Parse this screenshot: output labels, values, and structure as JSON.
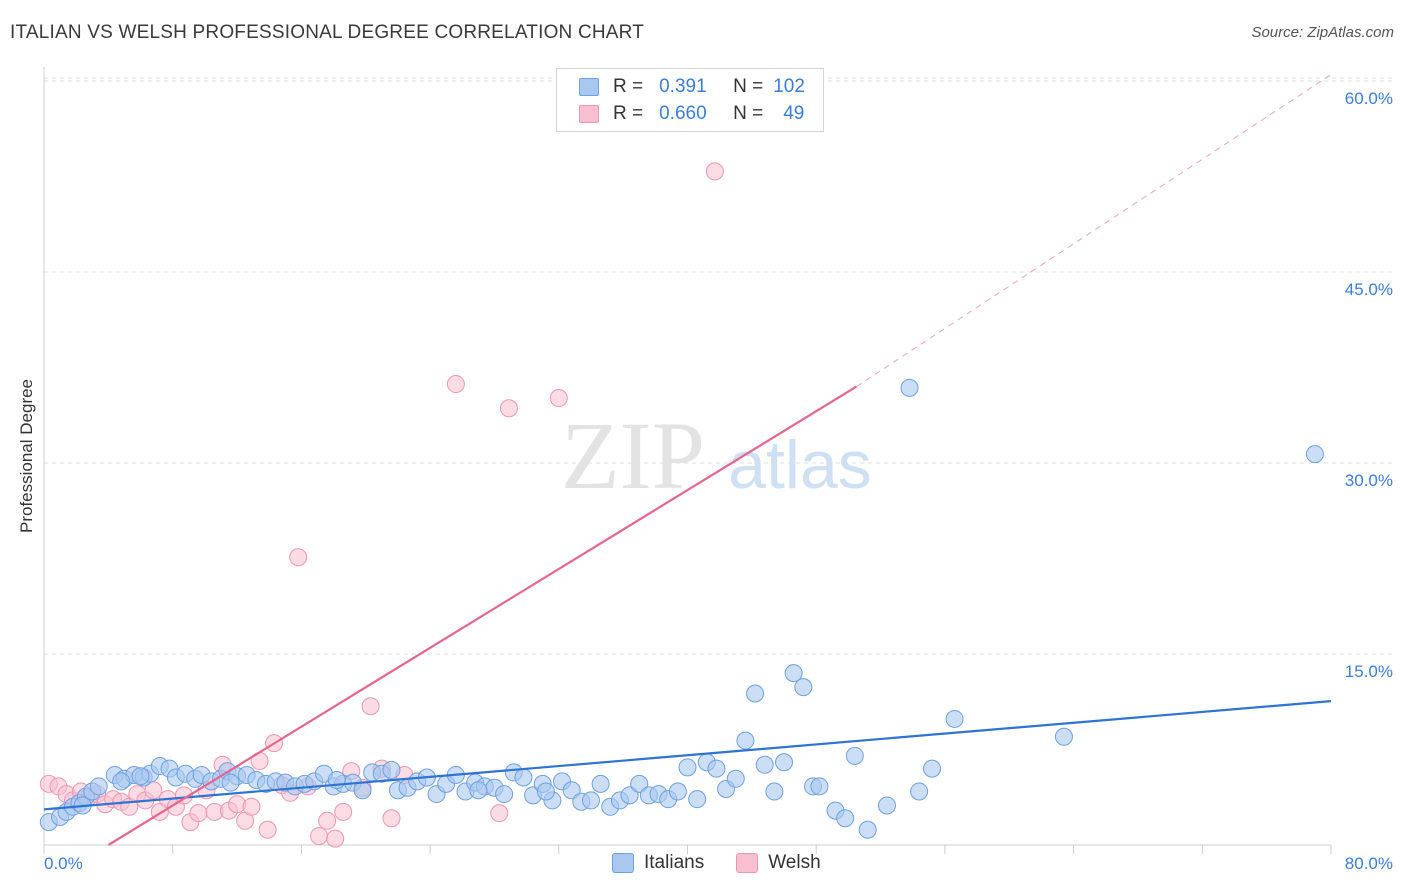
{
  "header": {
    "title": "ITALIAN VS WELSH PROFESSIONAL DEGREE CORRELATION CHART",
    "source": "Source: ZipAtlas.com"
  },
  "watermark": {
    "part1": "ZIP",
    "part2": "atlas"
  },
  "legend": {
    "italians": {
      "r_label": "R =",
      "r_value": "0.391",
      "n_label": "N =",
      "n_value": "102"
    },
    "welsh": {
      "r_label": "R =",
      "r_value": "0.660",
      "n_label": "N =",
      "n_value": "49"
    }
  },
  "colors": {
    "italians_fill": "#a8c8f0",
    "italians_stroke": "#6fa0e0",
    "italians_line": "#2f74d0",
    "welsh_fill": "#f8bfd0",
    "welsh_stroke": "#ee96b0",
    "welsh_line": "#e46690",
    "grid": "#dddddd",
    "tick_text": "#3b7dd8"
  },
  "chart_data": {
    "type": "scatter",
    "title": "ITALIAN VS WELSH PROFESSIONAL DEGREE CORRELATION CHART",
    "xlabel": "",
    "ylabel": "Professional Degree",
    "xlim": [
      0,
      80
    ],
    "ylim": [
      0,
      62
    ],
    "x_tick_labels": [
      "0.0%",
      "80.0%"
    ],
    "y_ticks": [
      15,
      30,
      45,
      60
    ],
    "y_tick_labels": [
      "15.0%",
      "30.0%",
      "45.0%",
      "60.0%"
    ],
    "grid": true,
    "legend_position": "top-center",
    "series": [
      {
        "name": "Italians",
        "r": 0.391,
        "n": 102,
        "trend": {
          "x": [
            0,
            80
          ],
          "y": [
            2.8,
            11.3
          ],
          "style": "solid"
        },
        "points": [
          [
            0.3,
            1.8
          ],
          [
            1.0,
            2.2
          ],
          [
            1.4,
            2.6
          ],
          [
            1.8,
            3.0
          ],
          [
            2.2,
            3.3
          ],
          [
            2.6,
            3.8
          ],
          [
            3.0,
            4.2
          ],
          [
            3.4,
            4.6
          ],
          [
            4.4,
            5.5
          ],
          [
            5.0,
            5.2
          ],
          [
            5.6,
            5.5
          ],
          [
            6.2,
            5.3
          ],
          [
            6.6,
            5.6
          ],
          [
            7.2,
            6.2
          ],
          [
            7.8,
            6.0
          ],
          [
            8.2,
            5.3
          ],
          [
            8.8,
            5.6
          ],
          [
            9.4,
            5.2
          ],
          [
            9.8,
            5.5
          ],
          [
            10.4,
            5.0
          ],
          [
            11.0,
            5.2
          ],
          [
            11.4,
            5.8
          ],
          [
            12.0,
            5.4
          ],
          [
            12.6,
            5.5
          ],
          [
            13.2,
            5.1
          ],
          [
            13.8,
            4.8
          ],
          [
            14.4,
            5.0
          ],
          [
            15.0,
            4.9
          ],
          [
            15.6,
            4.6
          ],
          [
            16.2,
            4.8
          ],
          [
            16.8,
            5.0
          ],
          [
            17.4,
            5.6
          ],
          [
            18.0,
            4.6
          ],
          [
            18.6,
            4.8
          ],
          [
            19.2,
            4.9
          ],
          [
            19.8,
            4.3
          ],
          [
            20.4,
            5.7
          ],
          [
            21.0,
            5.6
          ],
          [
            21.6,
            5.9
          ],
          [
            22.0,
            4.3
          ],
          [
            22.6,
            4.5
          ],
          [
            23.2,
            5.0
          ],
          [
            23.8,
            5.3
          ],
          [
            24.4,
            4.0
          ],
          [
            25.0,
            4.8
          ],
          [
            25.6,
            5.5
          ],
          [
            26.2,
            4.2
          ],
          [
            26.8,
            4.9
          ],
          [
            27.4,
            4.6
          ],
          [
            28.0,
            4.5
          ],
          [
            28.6,
            4.0
          ],
          [
            29.2,
            5.7
          ],
          [
            29.8,
            5.3
          ],
          [
            30.4,
            3.9
          ],
          [
            31.0,
            4.8
          ],
          [
            31.6,
            3.5
          ],
          [
            32.2,
            5.0
          ],
          [
            32.8,
            4.3
          ],
          [
            33.4,
            3.4
          ],
          [
            34.0,
            3.5
          ],
          [
            34.6,
            4.8
          ],
          [
            35.2,
            3.0
          ],
          [
            35.8,
            3.5
          ],
          [
            36.4,
            3.9
          ],
          [
            37.0,
            4.8
          ],
          [
            37.6,
            3.9
          ],
          [
            38.2,
            4.0
          ],
          [
            38.8,
            3.6
          ],
          [
            39.4,
            4.2
          ],
          [
            40.0,
            6.1
          ],
          [
            40.6,
            3.6
          ],
          [
            41.2,
            6.5
          ],
          [
            41.8,
            6.0
          ],
          [
            42.4,
            4.4
          ],
          [
            43.0,
            5.2
          ],
          [
            43.6,
            8.2
          ],
          [
            44.2,
            11.9
          ],
          [
            44.8,
            6.3
          ],
          [
            45.4,
            4.2
          ],
          [
            46.0,
            6.5
          ],
          [
            46.6,
            13.5
          ],
          [
            47.2,
            12.4
          ],
          [
            47.8,
            4.6
          ],
          [
            48.2,
            4.6
          ],
          [
            49.2,
            2.7
          ],
          [
            49.8,
            2.1
          ],
          [
            50.4,
            7.0
          ],
          [
            51.2,
            1.2
          ],
          [
            52.4,
            3.1
          ],
          [
            53.8,
            35.9
          ],
          [
            54.4,
            4.2
          ],
          [
            55.2,
            6.0
          ],
          [
            56.6,
            9.9
          ],
          [
            63.4,
            8.5
          ],
          [
            79.0,
            30.7
          ],
          [
            31.2,
            4.2
          ],
          [
            27.0,
            4.3
          ],
          [
            11.6,
            4.9
          ],
          [
            4.8,
            5.0
          ],
          [
            2.4,
            3.1
          ],
          [
            18.2,
            5.1
          ],
          [
            6.0,
            5.4
          ]
        ]
      },
      {
        "name": "Welsh",
        "r": 0.66,
        "n": 49,
        "trend": {
          "x": [
            4.0,
            50.5
          ],
          "y": [
            0,
            36.0
          ],
          "style": "solid",
          "extension": {
            "x": [
              50.5,
              80
            ],
            "y": [
              36.0,
              60.5
            ],
            "style": "dashed"
          }
        },
        "points": [
          [
            0.3,
            4.8
          ],
          [
            0.9,
            4.6
          ],
          [
            1.4,
            4.0
          ],
          [
            1.8,
            3.5
          ],
          [
            2.3,
            4.2
          ],
          [
            2.8,
            3.8
          ],
          [
            3.3,
            4.0
          ],
          [
            3.8,
            3.2
          ],
          [
            4.3,
            3.6
          ],
          [
            4.8,
            3.4
          ],
          [
            5.3,
            3.0
          ],
          [
            5.8,
            4.0
          ],
          [
            6.3,
            3.5
          ],
          [
            6.8,
            4.3
          ],
          [
            7.2,
            2.6
          ],
          [
            7.7,
            3.6
          ],
          [
            8.2,
            3.0
          ],
          [
            8.7,
            3.9
          ],
          [
            9.1,
            1.8
          ],
          [
            9.6,
            2.5
          ],
          [
            10.1,
            4.3
          ],
          [
            10.6,
            2.6
          ],
          [
            11.1,
            6.3
          ],
          [
            11.5,
            2.7
          ],
          [
            12.0,
            3.2
          ],
          [
            12.5,
            1.9
          ],
          [
            12.9,
            3.0
          ],
          [
            13.4,
            6.6
          ],
          [
            13.9,
            1.2
          ],
          [
            14.3,
            8.0
          ],
          [
            14.8,
            4.7
          ],
          [
            15.3,
            4.1
          ],
          [
            15.8,
            22.6
          ],
          [
            16.4,
            4.6
          ],
          [
            17.1,
            0.7
          ],
          [
            17.6,
            1.9
          ],
          [
            18.1,
            0.5
          ],
          [
            18.6,
            2.6
          ],
          [
            19.1,
            5.8
          ],
          [
            19.8,
            4.5
          ],
          [
            20.3,
            10.9
          ],
          [
            21.0,
            6.0
          ],
          [
            21.6,
            2.1
          ],
          [
            25.6,
            36.2
          ],
          [
            28.3,
            2.5
          ],
          [
            28.9,
            34.3
          ],
          [
            32.0,
            35.1
          ],
          [
            41.7,
            52.9
          ],
          [
            22.4,
            5.5
          ]
        ]
      }
    ]
  }
}
